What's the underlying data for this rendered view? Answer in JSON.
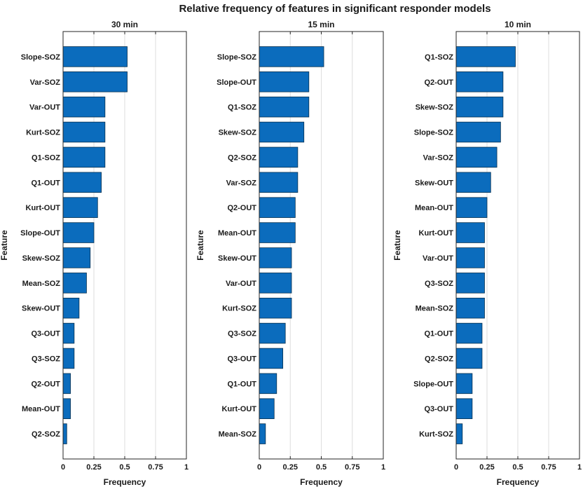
{
  "figure": {
    "title": "Relative frequency of features in significant responder models"
  },
  "chart_data": [
    {
      "type": "bar",
      "orientation": "horizontal",
      "title": "30 min",
      "xlabel": "Frequency",
      "ylabel": "Feature",
      "xlim": [
        0,
        1
      ],
      "xticks": [
        0,
        0.25,
        0.5,
        0.75,
        1
      ],
      "xtick_labels": [
        "0",
        "0.25",
        "0.5",
        "0.75",
        "1"
      ],
      "grid": "x",
      "categories": [
        "Slope-SOZ",
        "Var-SOZ",
        "Var-OUT",
        "Kurt-SOZ",
        "Q1-SOZ",
        "Q1-OUT",
        "Kurt-OUT",
        "Slope-OUT",
        "Skew-SOZ",
        "Mean-SOZ",
        "Skew-OUT",
        "Q3-OUT",
        "Q3-SOZ",
        "Q2-OUT",
        "Mean-OUT",
        "Q2-SOZ"
      ],
      "values": [
        0.52,
        0.52,
        0.34,
        0.34,
        0.34,
        0.31,
        0.28,
        0.25,
        0.22,
        0.19,
        0.13,
        0.09,
        0.09,
        0.06,
        0.06,
        0.03
      ]
    },
    {
      "type": "bar",
      "orientation": "horizontal",
      "title": "15 min",
      "xlabel": "Frequency",
      "ylabel": "Feature",
      "xlim": [
        0,
        1
      ],
      "xticks": [
        0,
        0.25,
        0.5,
        0.75,
        1
      ],
      "xtick_labels": [
        "0",
        "0.25",
        "0.5",
        "0.75",
        "1"
      ],
      "grid": "x",
      "categories": [
        "Slope-SOZ",
        "Slope-OUT",
        "Q1-SOZ",
        "Skew-SOZ",
        "Q2-SOZ",
        "Var-SOZ",
        "Q2-OUT",
        "Mean-OUT",
        "Skew-OUT",
        "Var-OUT",
        "Kurt-SOZ",
        "Q3-SOZ",
        "Q3-OUT",
        "Q1-OUT",
        "Kurt-OUT",
        "Mean-SOZ"
      ],
      "values": [
        0.52,
        0.4,
        0.4,
        0.36,
        0.31,
        0.31,
        0.29,
        0.29,
        0.26,
        0.26,
        0.26,
        0.21,
        0.19,
        0.14,
        0.12,
        0.05
      ]
    },
    {
      "type": "bar",
      "orientation": "horizontal",
      "title": "10 min",
      "xlabel": "Frequency",
      "ylabel": "Feature",
      "xlim": [
        0,
        1
      ],
      "xticks": [
        0,
        0.25,
        0.5,
        0.75,
        1
      ],
      "xtick_labels": [
        "0",
        "0.25",
        "0.5",
        "0.75",
        "1"
      ],
      "grid": "x",
      "categories": [
        "Q1-SOZ",
        "Q2-OUT",
        "Skew-SOZ",
        "Slope-SOZ",
        "Var-SOZ",
        "Skew-OUT",
        "Mean-OUT",
        "Kurt-OUT",
        "Var-OUT",
        "Q3-SOZ",
        "Mean-SOZ",
        "Q1-OUT",
        "Q2-SOZ",
        "Slope-OUT",
        "Q3-OUT",
        "Kurt-SOZ"
      ],
      "values": [
        0.48,
        0.38,
        0.38,
        0.36,
        0.33,
        0.28,
        0.25,
        0.23,
        0.23,
        0.23,
        0.23,
        0.21,
        0.21,
        0.13,
        0.13,
        0.05
      ]
    }
  ]
}
